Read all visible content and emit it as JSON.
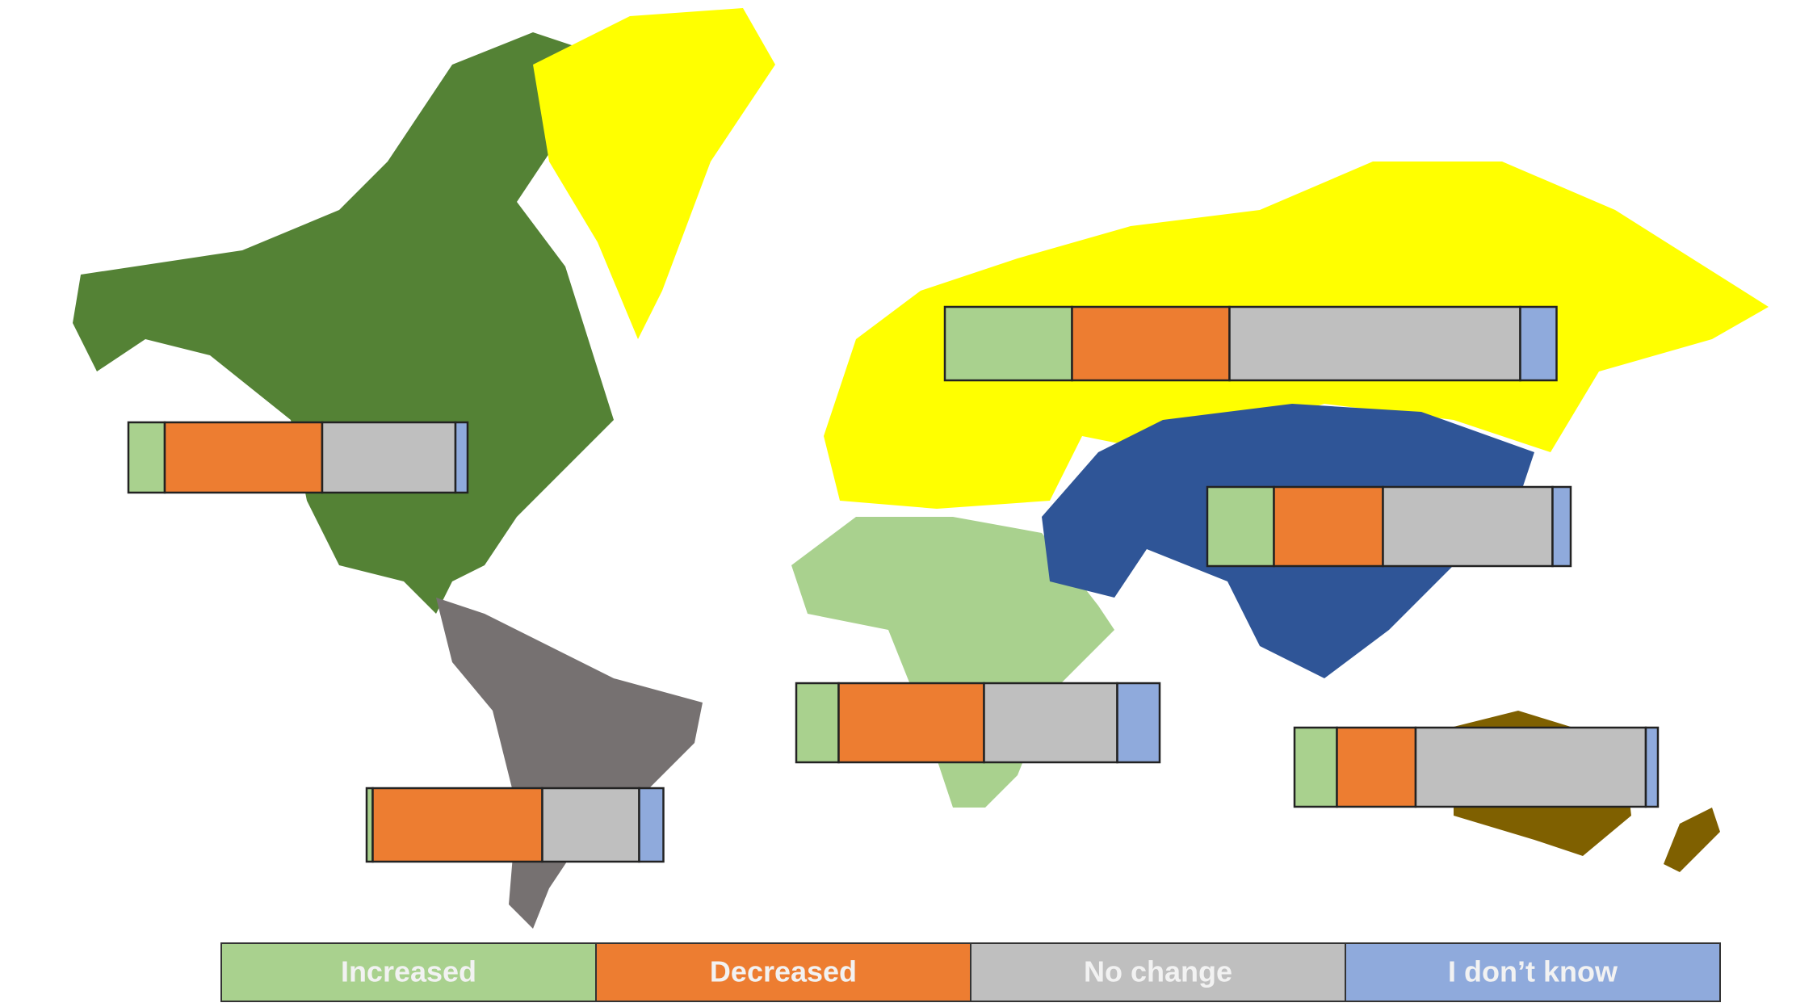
{
  "chart_data": {
    "type": "bar",
    "series": [
      {
        "name": "Increased",
        "color": "#a9d18e",
        "values": [
          21,
          6,
          11,
          7,
          1,
          7
        ]
      },
      {
        "name": "Decreased",
        "color": "#ed7d31",
        "values": [
          26,
          26,
          18,
          24,
          28,
          13
        ]
      },
      {
        "name": "No change",
        "color": "#bfbfbf",
        "values": [
          48,
          22,
          28,
          22,
          16,
          38
        ]
      },
      {
        "name": "I don’t know",
        "color": "#8faadc",
        "values": [
          6,
          2,
          3,
          7,
          4,
          2
        ]
      }
    ]
  }
}
